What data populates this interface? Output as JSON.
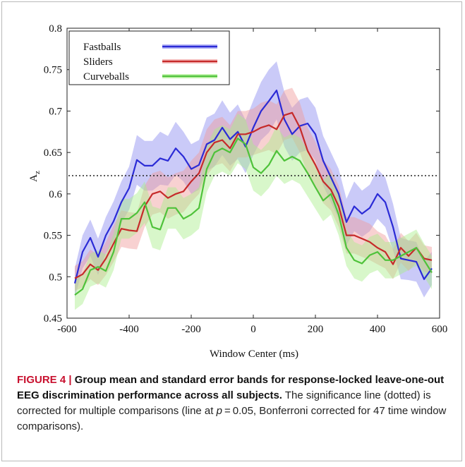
{
  "chart_data": {
    "type": "line",
    "xlabel": "Window Center (ms)",
    "ylabel": "A",
    "ylabel_sub": "z",
    "xlim": [
      -600,
      600
    ],
    "ylim": [
      0.45,
      0.8
    ],
    "xticks": [
      -600,
      -400,
      -200,
      0,
      200,
      400,
      600
    ],
    "yticks": [
      0.45,
      0.5,
      0.55,
      0.6,
      0.65,
      0.7,
      0.75,
      0.8
    ],
    "ytick_labels": [
      "0.45",
      "0.5",
      "0.55",
      "0.6",
      "0.65",
      "0.7",
      "0.75",
      "0.8"
    ],
    "xtick_labels": [
      "-600",
      "-400",
      "-200",
      "0",
      "200",
      "400",
      "600"
    ],
    "legend_position": "top-left",
    "significance_line": 0.622,
    "x": [
      -575,
      -550,
      -525,
      -500,
      -475,
      -450,
      -425,
      -400,
      -375,
      -350,
      -325,
      -300,
      -275,
      -250,
      -225,
      -200,
      -175,
      -150,
      -125,
      -100,
      -75,
      -50,
      -25,
      0,
      25,
      50,
      75,
      100,
      125,
      150,
      175,
      200,
      225,
      250,
      275,
      300,
      325,
      350,
      375,
      400,
      425,
      450,
      475,
      500,
      525,
      550,
      575
    ],
    "series": [
      {
        "name": "Fastballs",
        "color": "#2b2bd6",
        "band_color": "#8a8af0",
        "values": [
          0.492,
          0.53,
          0.547,
          0.524,
          0.55,
          0.567,
          0.59,
          0.607,
          0.641,
          0.634,
          0.634,
          0.643,
          0.64,
          0.655,
          0.645,
          0.63,
          0.635,
          0.66,
          0.665,
          0.68,
          0.666,
          0.675,
          0.657,
          0.68,
          0.7,
          0.712,
          0.725,
          0.69,
          0.672,
          0.682,
          0.685,
          0.672,
          0.64,
          0.62,
          0.6,
          0.566,
          0.585,
          0.576,
          0.583,
          0.6,
          0.59,
          0.56,
          0.522,
          0.52,
          0.518,
          0.497,
          0.51
        ],
        "error": [
          0.018,
          0.02,
          0.022,
          0.022,
          0.022,
          0.024,
          0.025,
          0.026,
          0.03,
          0.03,
          0.03,
          0.032,
          0.03,
          0.032,
          0.03,
          0.03,
          0.03,
          0.032,
          0.032,
          0.033,
          0.032,
          0.033,
          0.032,
          0.033,
          0.035,
          0.038,
          0.035,
          0.033,
          0.032,
          0.032,
          0.032,
          0.032,
          0.03,
          0.03,
          0.03,
          0.028,
          0.03,
          0.028,
          0.028,
          0.03,
          0.03,
          0.028,
          0.025,
          0.024,
          0.024,
          0.022,
          0.02
        ]
      },
      {
        "name": "Sliders",
        "color": "#c62a2a",
        "band_color": "#f09a9a",
        "values": [
          0.498,
          0.503,
          0.515,
          0.508,
          0.522,
          0.54,
          0.558,
          0.556,
          0.555,
          0.585,
          0.6,
          0.603,
          0.595,
          0.6,
          0.603,
          0.615,
          0.625,
          0.65,
          0.662,
          0.665,
          0.655,
          0.672,
          0.672,
          0.675,
          0.68,
          0.683,
          0.678,
          0.695,
          0.698,
          0.68,
          0.652,
          0.635,
          0.615,
          0.605,
          0.585,
          0.55,
          0.55,
          0.546,
          0.542,
          0.535,
          0.53,
          0.515,
          0.535,
          0.525,
          0.535,
          0.522,
          0.52
        ],
        "error": [
          0.015,
          0.016,
          0.018,
          0.018,
          0.02,
          0.022,
          0.022,
          0.022,
          0.022,
          0.025,
          0.025,
          0.025,
          0.025,
          0.025,
          0.025,
          0.025,
          0.025,
          0.028,
          0.028,
          0.028,
          0.028,
          0.028,
          0.028,
          0.028,
          0.03,
          0.03,
          0.03,
          0.03,
          0.03,
          0.03,
          0.028,
          0.028,
          0.026,
          0.025,
          0.025,
          0.022,
          0.022,
          0.022,
          0.022,
          0.02,
          0.02,
          0.018,
          0.018,
          0.018,
          0.018,
          0.016,
          0.016
        ]
      },
      {
        "name": "Curveballs",
        "color": "#4ec23a",
        "band_color": "#a8ee8a",
        "values": [
          0.478,
          0.485,
          0.508,
          0.512,
          0.507,
          0.53,
          0.57,
          0.57,
          0.577,
          0.59,
          0.56,
          0.557,
          0.583,
          0.583,
          0.57,
          0.575,
          0.583,
          0.63,
          0.65,
          0.655,
          0.65,
          0.667,
          0.66,
          0.632,
          0.625,
          0.635,
          0.652,
          0.64,
          0.645,
          0.64,
          0.625,
          0.608,
          0.592,
          0.6,
          0.575,
          0.535,
          0.52,
          0.516,
          0.526,
          0.53,
          0.52,
          0.52,
          0.525,
          0.53,
          0.535,
          0.52,
          0.505
        ],
        "error": [
          0.018,
          0.018,
          0.02,
          0.02,
          0.02,
          0.022,
          0.024,
          0.024,
          0.024,
          0.025,
          0.025,
          0.025,
          0.025,
          0.025,
          0.025,
          0.025,
          0.025,
          0.028,
          0.028,
          0.028,
          0.028,
          0.03,
          0.03,
          0.028,
          0.028,
          0.028,
          0.03,
          0.028,
          0.028,
          0.028,
          0.028,
          0.026,
          0.025,
          0.025,
          0.025,
          0.022,
          0.022,
          0.022,
          0.022,
          0.022,
          0.022,
          0.022,
          0.022,
          0.022,
          0.022,
          0.02,
          0.02
        ]
      }
    ]
  },
  "caption": {
    "label": "FIGURE 4 |",
    "title": " Group mean and standard error bands for response-locked leave-one-out EEG discrimination performance across all subjects.",
    "body_1": " The significance line (dotted) is corrected for multiple comparisons (line at ",
    "p_symbol": "p",
    "body_2": " = 0.05, Bonferroni corrected for 47 time window comparisons)."
  }
}
